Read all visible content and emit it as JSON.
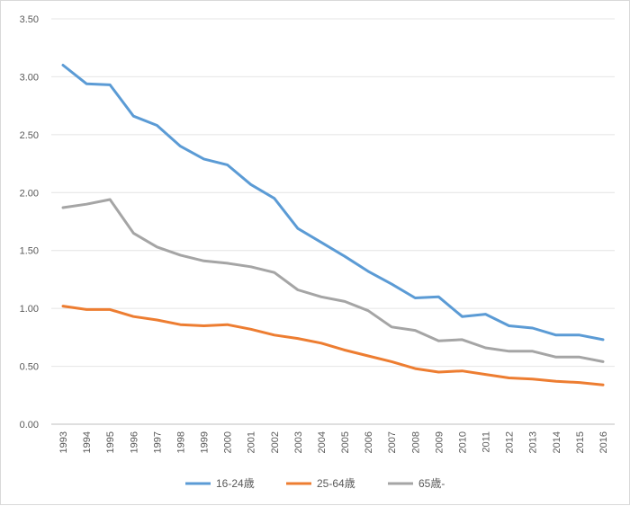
{
  "chart_data": {
    "type": "line",
    "title": "",
    "xlabel": "",
    "ylabel": "",
    "ylim": [
      0,
      3.5
    ],
    "ytick_step": 0.5,
    "ytick_labels": [
      "0.00",
      "0.50",
      "1.00",
      "1.50",
      "2.00",
      "2.50",
      "3.00",
      "3.50"
    ],
    "grid": "horizontal",
    "legend_position": "bottom",
    "categories": [
      "1993",
      "1994",
      "1995",
      "1996",
      "1997",
      "1998",
      "1999",
      "2000",
      "2001",
      "2002",
      "2003",
      "2004",
      "2005",
      "2006",
      "2007",
      "2008",
      "2009",
      "2010",
      "2011",
      "2012",
      "2013",
      "2014",
      "2015",
      "2016"
    ],
    "series": [
      {
        "name": "16-24歳",
        "color": "#5b9bd5",
        "values": [
          3.1,
          2.94,
          2.93,
          2.66,
          2.58,
          2.4,
          2.29,
          2.24,
          2.07,
          1.95,
          1.69,
          1.57,
          1.45,
          1.32,
          1.21,
          1.09,
          1.1,
          0.93,
          0.95,
          0.85,
          0.83,
          0.77,
          0.77,
          0.73
        ]
      },
      {
        "name": "25-64歳",
        "color": "#ed7d31",
        "values": [
          1.02,
          0.99,
          0.99,
          0.93,
          0.9,
          0.86,
          0.85,
          0.86,
          0.82,
          0.77,
          0.74,
          0.7,
          0.64,
          0.59,
          0.54,
          0.48,
          0.45,
          0.46,
          0.43,
          0.4,
          0.39,
          0.37,
          0.36,
          0.34
        ]
      },
      {
        "name": "65歳-",
        "color": "#a5a5a5",
        "values": [
          1.87,
          1.9,
          1.94,
          1.65,
          1.53,
          1.46,
          1.41,
          1.39,
          1.36,
          1.31,
          1.16,
          1.1,
          1.06,
          0.98,
          0.84,
          0.81,
          0.72,
          0.73,
          0.66,
          0.63,
          0.63,
          0.58,
          0.58,
          0.54
        ]
      }
    ]
  }
}
